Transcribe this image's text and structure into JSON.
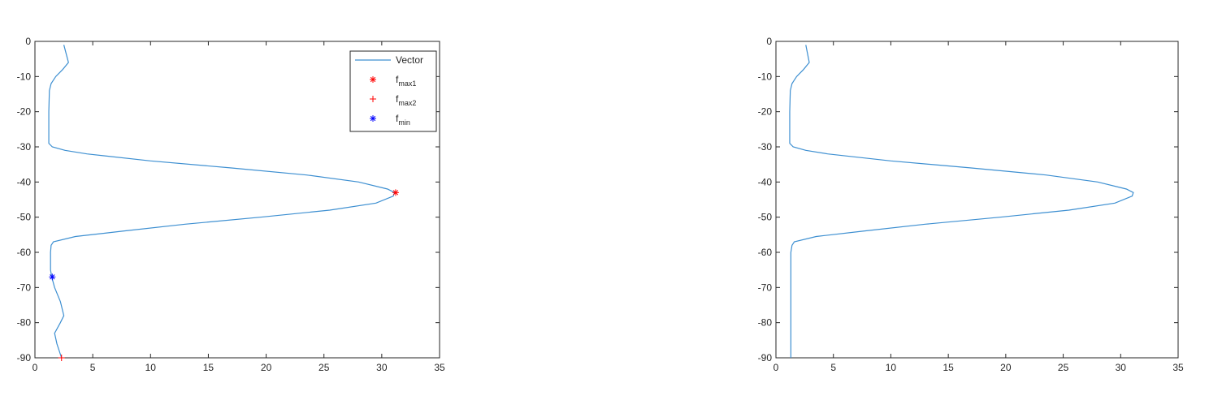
{
  "chart_data": [
    {
      "type": "line",
      "xlim": [
        0,
        35
      ],
      "ylim": [
        -90,
        0
      ],
      "xticks": [
        0,
        5,
        10,
        15,
        20,
        25,
        30,
        35
      ],
      "yticks": [
        0,
        -10,
        -20,
        -30,
        -40,
        -50,
        -60,
        -70,
        -80,
        -90
      ],
      "legend": "upper right",
      "series": [
        {
          "name": "Vector",
          "color": "#3d8fd1",
          "marker": "none",
          "x": [
            2.5,
            2.9,
            2.4,
            1.8,
            1.4,
            1.25,
            1.2,
            1.2,
            1.5,
            2.6,
            4.5,
            10,
            17,
            23.5,
            28,
            30.5,
            31.1,
            31,
            29.5,
            25.5,
            19.5,
            13,
            7.5,
            3.5,
            1.6,
            1.4,
            1.35,
            1.35,
            1.45,
            1.7,
            2.2,
            2.5,
            2.2,
            1.7,
            1.9,
            2.3
          ],
          "values": [
            -1,
            -6,
            -8,
            -10,
            -12,
            -14,
            -20,
            -29,
            -30,
            -31,
            -32,
            -34,
            -36,
            -38,
            -40,
            -42,
            -43,
            -44,
            -46,
            -48,
            -50,
            -52,
            -54,
            -55.5,
            -57,
            -58,
            -60,
            -65,
            -67,
            -70,
            -74,
            -78,
            -80,
            -83,
            -86,
            -90
          ]
        },
        {
          "name": "f",
          "subscript": "max1",
          "color": "#ff0000",
          "marker": "*",
          "x": [
            31.2
          ],
          "values": [
            -43
          ]
        },
        {
          "name": "f",
          "subscript": "max2",
          "color": "#ff0000",
          "marker": "+",
          "x": [
            2.3
          ],
          "values": [
            -90
          ]
        },
        {
          "name": "f",
          "subscript": "min",
          "color": "#0000ff",
          "marker": "*",
          "x": [
            1.5
          ],
          "values": [
            -67
          ]
        }
      ]
    },
    {
      "type": "line",
      "xlim": [
        0,
        35
      ],
      "ylim": [
        -90,
        0
      ],
      "xticks": [
        0,
        5,
        10,
        15,
        20,
        25,
        30,
        35
      ],
      "yticks": [
        0,
        -10,
        -20,
        -30,
        -40,
        -50,
        -60,
        -70,
        -80,
        -90
      ],
      "series": [
        {
          "color": "#3d8fd1",
          "marker": "none",
          "x": [
            2.6,
            2.9,
            2.4,
            1.8,
            1.4,
            1.25,
            1.2,
            1.2,
            1.5,
            2.6,
            4.5,
            10,
            17,
            23.5,
            28,
            30.5,
            31.1,
            31,
            29.5,
            25.5,
            19.5,
            13,
            7.5,
            3.5,
            1.6,
            1.4,
            1.3,
            1.3,
            1.3
          ],
          "values": [
            -1,
            -6,
            -8,
            -10,
            -12,
            -14,
            -20,
            -29,
            -30,
            -31,
            -32,
            -34,
            -36,
            -38,
            -40,
            -42,
            -43,
            -44,
            -46,
            -48,
            -50,
            -52,
            -54,
            -55.5,
            -57,
            -58,
            -60,
            -70,
            -90
          ]
        }
      ]
    }
  ]
}
